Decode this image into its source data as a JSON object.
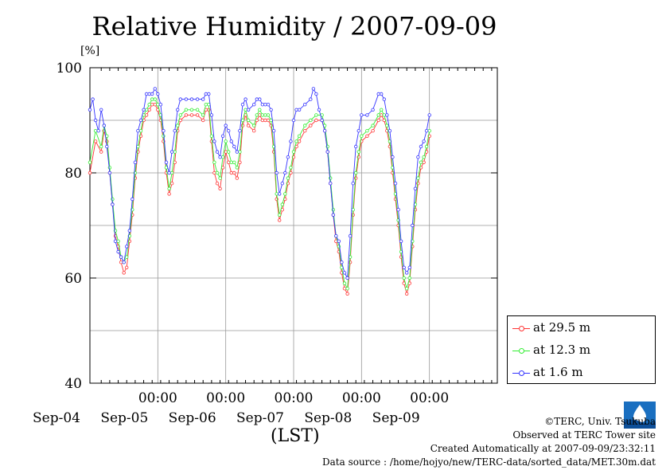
{
  "title": "Relative Humidity / 2007-09-09",
  "footer": {
    "copyright": "©TERC, Univ. Tsukuba",
    "observed": "Observed at TERC Tower site",
    "created": "Created Automatically at 2007-09-09/23:32:11",
    "source": "Data source : /home/hojyo/new/TERC-data/sorted_data/MET.30m.dat"
  },
  "logo_text": "TERC",
  "colors": {
    "s1": "#ff3333",
    "s2": "#33ee33",
    "s3": "#3333ff"
  },
  "chart_data": {
    "type": "line",
    "title": "Relative Humidity / 2007-09-09",
    "ylabel": "[%]",
    "xlabel": "(LST)",
    "ylim": [
      40,
      100
    ],
    "yticks": [
      40,
      60,
      80,
      100
    ],
    "xlim_hours": [
      -4,
      140
    ],
    "xticks": [
      {
        "hour": 20,
        "time": "00:00",
        "date": "Sep-05"
      },
      {
        "hour": 44,
        "time": "00:00",
        "date": "Sep-06"
      },
      {
        "hour": 68,
        "time": "00:00",
        "date": "Sep-07"
      },
      {
        "hour": 92,
        "time": "00:00",
        "date": "Sep-08"
      },
      {
        "hour": 116,
        "time": "00:00",
        "date": "Sep-09"
      }
    ],
    "first_date_label": "Sep-04",
    "grid": true,
    "legend_position": "bottom-right",
    "series": [
      {
        "name": "at 29.5 m",
        "points": [
          [
            -4,
            80
          ],
          [
            -2,
            86
          ],
          [
            0,
            84
          ],
          [
            1,
            88
          ],
          [
            2,
            86
          ],
          [
            3,
            80
          ],
          [
            4,
            74
          ],
          [
            5,
            68
          ],
          [
            6,
            66
          ],
          [
            7,
            63
          ],
          [
            8,
            61
          ],
          [
            9,
            62
          ],
          [
            10,
            67
          ],
          [
            11,
            72
          ],
          [
            12,
            79
          ],
          [
            13,
            84
          ],
          [
            14,
            87
          ],
          [
            15,
            90
          ],
          [
            16,
            91
          ],
          [
            17,
            92
          ],
          [
            18,
            93
          ],
          [
            19,
            93
          ],
          [
            20,
            92
          ],
          [
            21,
            90
          ],
          [
            22,
            86
          ],
          [
            23,
            80
          ],
          [
            24,
            76
          ],
          [
            25,
            78
          ],
          [
            26,
            82
          ],
          [
            27,
            88
          ],
          [
            28,
            90
          ],
          [
            30,
            91
          ],
          [
            32,
            91
          ],
          [
            34,
            91
          ],
          [
            36,
            90
          ],
          [
            37,
            92
          ],
          [
            38,
            92
          ],
          [
            39,
            86
          ],
          [
            40,
            80
          ],
          [
            41,
            78
          ],
          [
            42,
            77
          ],
          [
            43,
            81
          ],
          [
            44,
            84
          ],
          [
            45,
            82
          ],
          [
            46,
            80
          ],
          [
            47,
            80
          ],
          [
            48,
            79
          ],
          [
            49,
            82
          ],
          [
            50,
            89
          ],
          [
            51,
            91
          ],
          [
            52,
            89
          ],
          [
            54,
            88
          ],
          [
            55,
            90
          ],
          [
            56,
            91
          ],
          [
            57,
            90
          ],
          [
            58,
            90
          ],
          [
            59,
            90
          ],
          [
            60,
            89
          ],
          [
            61,
            84
          ],
          [
            62,
            75
          ],
          [
            63,
            71
          ],
          [
            64,
            73
          ],
          [
            65,
            75
          ],
          [
            66,
            78
          ],
          [
            67,
            80
          ],
          [
            68,
            83
          ],
          [
            69,
            85
          ],
          [
            70,
            86
          ],
          [
            72,
            88
          ],
          [
            74,
            89
          ],
          [
            76,
            90
          ],
          [
            78,
            90
          ],
          [
            79,
            88
          ],
          [
            80,
            84
          ],
          [
            81,
            78
          ],
          [
            82,
            72
          ],
          [
            83,
            67
          ],
          [
            84,
            65
          ],
          [
            85,
            61
          ],
          [
            86,
            58
          ],
          [
            87,
            57
          ],
          [
            88,
            63
          ],
          [
            89,
            72
          ],
          [
            90,
            79
          ],
          [
            91,
            83
          ],
          [
            92,
            86
          ],
          [
            94,
            87
          ],
          [
            96,
            88
          ],
          [
            98,
            90
          ],
          [
            99,
            91
          ],
          [
            100,
            90
          ],
          [
            101,
            88
          ],
          [
            102,
            85
          ],
          [
            103,
            80
          ],
          [
            104,
            75
          ],
          [
            105,
            70
          ],
          [
            106,
            64
          ],
          [
            107,
            59
          ],
          [
            108,
            57
          ],
          [
            109,
            59
          ],
          [
            110,
            66
          ],
          [
            111,
            73
          ],
          [
            112,
            78
          ],
          [
            113,
            81
          ],
          [
            114,
            82
          ],
          [
            115,
            84
          ],
          [
            116,
            87
          ]
        ]
      },
      {
        "name": "at 12.3 m",
        "points": [
          [
            -4,
            82
          ],
          [
            -2,
            88
          ],
          [
            0,
            85
          ],
          [
            1,
            89
          ],
          [
            2,
            87
          ],
          [
            3,
            81
          ],
          [
            4,
            75
          ],
          [
            5,
            69
          ],
          [
            6,
            67
          ],
          [
            7,
            64
          ],
          [
            8,
            63
          ],
          [
            9,
            64
          ],
          [
            10,
            68
          ],
          [
            11,
            73
          ],
          [
            12,
            80
          ],
          [
            13,
            85
          ],
          [
            14,
            88
          ],
          [
            15,
            91
          ],
          [
            16,
            92
          ],
          [
            17,
            93
          ],
          [
            18,
            94
          ],
          [
            19,
            94
          ],
          [
            20,
            93
          ],
          [
            21,
            91
          ],
          [
            22,
            87
          ],
          [
            23,
            81
          ],
          [
            24,
            77
          ],
          [
            25,
            80
          ],
          [
            26,
            84
          ],
          [
            27,
            89
          ],
          [
            28,
            91
          ],
          [
            30,
            92
          ],
          [
            32,
            92
          ],
          [
            34,
            92
          ],
          [
            36,
            91
          ],
          [
            37,
            93
          ],
          [
            38,
            93
          ],
          [
            39,
            87
          ],
          [
            40,
            82
          ],
          [
            41,
            80
          ],
          [
            42,
            79
          ],
          [
            43,
            83
          ],
          [
            44,
            86
          ],
          [
            45,
            84
          ],
          [
            46,
            82
          ],
          [
            47,
            82
          ],
          [
            48,
            81
          ],
          [
            49,
            84
          ],
          [
            50,
            90
          ],
          [
            51,
            92
          ],
          [
            52,
            90
          ],
          [
            54,
            89
          ],
          [
            55,
            91
          ],
          [
            56,
            92
          ],
          [
            57,
            91
          ],
          [
            58,
            91
          ],
          [
            59,
            91
          ],
          [
            60,
            90
          ],
          [
            61,
            85
          ],
          [
            62,
            76
          ],
          [
            63,
            72
          ],
          [
            64,
            74
          ],
          [
            65,
            76
          ],
          [
            66,
            79
          ],
          [
            67,
            81
          ],
          [
            68,
            84
          ],
          [
            69,
            86
          ],
          [
            70,
            87
          ],
          [
            72,
            89
          ],
          [
            74,
            90
          ],
          [
            76,
            91
          ],
          [
            78,
            91
          ],
          [
            79,
            89
          ],
          [
            80,
            85
          ],
          [
            81,
            79
          ],
          [
            82,
            73
          ],
          [
            83,
            68
          ],
          [
            84,
            66
          ],
          [
            85,
            62
          ],
          [
            86,
            59
          ],
          [
            87,
            58
          ],
          [
            88,
            64
          ],
          [
            89,
            73
          ],
          [
            90,
            80
          ],
          [
            91,
            84
          ],
          [
            92,
            87
          ],
          [
            94,
            88
          ],
          [
            96,
            89
          ],
          [
            98,
            91
          ],
          [
            99,
            92
          ],
          [
            100,
            91
          ],
          [
            101,
            89
          ],
          [
            102,
            86
          ],
          [
            103,
            81
          ],
          [
            104,
            76
          ],
          [
            105,
            71
          ],
          [
            106,
            65
          ],
          [
            107,
            60
          ],
          [
            108,
            58
          ],
          [
            109,
            60
          ],
          [
            110,
            67
          ],
          [
            111,
            74
          ],
          [
            112,
            79
          ],
          [
            113,
            82
          ],
          [
            114,
            83
          ],
          [
            115,
            85
          ],
          [
            116,
            88
          ]
        ]
      },
      {
        "name": "at 1.6 m",
        "points": [
          [
            -4,
            92
          ],
          [
            -3,
            94
          ],
          [
            -2,
            90
          ],
          [
            -1,
            88
          ],
          [
            0,
            92
          ],
          [
            1,
            89
          ],
          [
            2,
            85
          ],
          [
            3,
            80
          ],
          [
            4,
            74
          ],
          [
            5,
            67
          ],
          [
            6,
            65
          ],
          [
            7,
            64
          ],
          [
            8,
            63
          ],
          [
            9,
            66
          ],
          [
            10,
            69
          ],
          [
            11,
            75
          ],
          [
            12,
            82
          ],
          [
            13,
            88
          ],
          [
            14,
            90
          ],
          [
            15,
            92
          ],
          [
            16,
            95
          ],
          [
            17,
            95
          ],
          [
            18,
            95
          ],
          [
            19,
            96
          ],
          [
            20,
            95
          ],
          [
            21,
            93
          ],
          [
            22,
            88
          ],
          [
            23,
            82
          ],
          [
            24,
            80
          ],
          [
            25,
            84
          ],
          [
            26,
            88
          ],
          [
            27,
            92
          ],
          [
            28,
            94
          ],
          [
            30,
            94
          ],
          [
            32,
            94
          ],
          [
            34,
            94
          ],
          [
            36,
            94
          ],
          [
            37,
            95
          ],
          [
            38,
            95
          ],
          [
            39,
            91
          ],
          [
            40,
            86
          ],
          [
            41,
            84
          ],
          [
            42,
            83
          ],
          [
            43,
            87
          ],
          [
            44,
            89
          ],
          [
            45,
            88
          ],
          [
            46,
            86
          ],
          [
            47,
            85
          ],
          [
            48,
            84
          ],
          [
            49,
            88
          ],
          [
            50,
            93
          ],
          [
            51,
            94
          ],
          [
            52,
            92
          ],
          [
            54,
            93
          ],
          [
            55,
            94
          ],
          [
            56,
            94
          ],
          [
            57,
            93
          ],
          [
            58,
            93
          ],
          [
            59,
            93
          ],
          [
            60,
            92
          ],
          [
            61,
            88
          ],
          [
            62,
            80
          ],
          [
            63,
            76
          ],
          [
            64,
            78
          ],
          [
            65,
            80
          ],
          [
            66,
            83
          ],
          [
            67,
            86
          ],
          [
            68,
            90
          ],
          [
            69,
            92
          ],
          [
            70,
            92
          ],
          [
            72,
            93
          ],
          [
            74,
            94
          ],
          [
            75,
            96
          ],
          [
            76,
            95
          ],
          [
            77,
            92
          ],
          [
            78,
            90
          ],
          [
            79,
            88
          ],
          [
            80,
            84
          ],
          [
            81,
            78
          ],
          [
            82,
            72
          ],
          [
            83,
            68
          ],
          [
            84,
            67
          ],
          [
            85,
            63
          ],
          [
            86,
            61
          ],
          [
            87,
            60
          ],
          [
            88,
            68
          ],
          [
            89,
            78
          ],
          [
            90,
            85
          ],
          [
            91,
            88
          ],
          [
            92,
            91
          ],
          [
            94,
            91
          ],
          [
            96,
            92
          ],
          [
            98,
            95
          ],
          [
            99,
            95
          ],
          [
            100,
            94
          ],
          [
            101,
            91
          ],
          [
            102,
            88
          ],
          [
            103,
            83
          ],
          [
            104,
            78
          ],
          [
            105,
            73
          ],
          [
            106,
            67
          ],
          [
            107,
            62
          ],
          [
            108,
            61
          ],
          [
            109,
            62
          ],
          [
            110,
            70
          ],
          [
            111,
            77
          ],
          [
            112,
            83
          ],
          [
            113,
            85
          ],
          [
            114,
            86
          ],
          [
            115,
            88
          ],
          [
            116,
            91
          ]
        ]
      }
    ]
  }
}
